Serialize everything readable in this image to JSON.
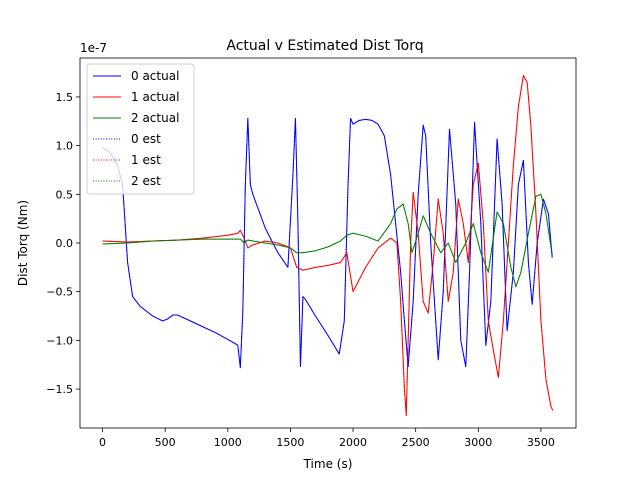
{
  "chart_data": {
    "type": "line",
    "title": "Actual v Estimated Dist Torq",
    "xlabel": "Time (s)",
    "ylabel": "Dist Torq (Nm)",
    "y_multiplier_label": "1e-7",
    "xlim": [
      -180,
      3780
    ],
    "ylim": [
      -1.9,
      1.9
    ],
    "x_ticks": [
      0,
      500,
      1000,
      1500,
      2000,
      2500,
      3000,
      3500
    ],
    "x_tick_labels": [
      "0",
      "500",
      "1000",
      "1500",
      "2000",
      "2500",
      "3000",
      "3500"
    ],
    "y_ticks": [
      -1.5,
      -1.0,
      -0.5,
      0.0,
      0.5,
      1.0,
      1.5
    ],
    "y_tick_labels": [
      "−1.5",
      "−1.0",
      "−0.5",
      "0.0",
      "0.5",
      "1.0",
      "1.5"
    ],
    "legend_position": "top-left",
    "series": [
      {
        "name": "0 actual",
        "color": "#0000ff",
        "style": "solid",
        "x": [
          0,
          60,
          120,
          160,
          200,
          240,
          300,
          400,
          480,
          520,
          560,
          600,
          700,
          800,
          900,
          1000,
          1080,
          1100,
          1120,
          1140,
          1160,
          1180,
          1200,
          1300,
          1400,
          1480,
          1520,
          1540,
          1560,
          1580,
          1600,
          1620,
          1700,
          1800,
          1890,
          1930,
          1960,
          1980,
          2000,
          2050,
          2100,
          2150,
          2200,
          2250,
          2300,
          2340,
          2380,
          2410,
          2440,
          2480,
          2520,
          2560,
          2580,
          2620,
          2680,
          2720,
          2770,
          2820,
          2860,
          2900,
          2930,
          2970,
          3020,
          3060,
          3100,
          3150,
          3190,
          3230,
          3280,
          3320,
          3360,
          3400,
          3430,
          3470,
          3520,
          3560,
          3590
        ],
        "y": [
          0.98,
          0.93,
          0.8,
          0.6,
          -0.2,
          -0.55,
          -0.65,
          -0.75,
          -0.8,
          -0.78,
          -0.74,
          -0.74,
          -0.8,
          -0.86,
          -0.92,
          -0.99,
          -1.05,
          -1.28,
          -0.7,
          0.6,
          1.28,
          0.6,
          0.5,
          0.15,
          -0.1,
          -0.25,
          0.7,
          1.28,
          0.2,
          -1.27,
          -0.55,
          -0.58,
          -0.75,
          -0.95,
          -1.14,
          -0.8,
          0.6,
          1.28,
          1.22,
          1.26,
          1.27,
          1.26,
          1.22,
          1.1,
          0.7,
          0.2,
          -0.3,
          -0.8,
          -1.27,
          -0.6,
          0.5,
          1.21,
          1.1,
          0.0,
          -1.2,
          -0.5,
          1.17,
          0.4,
          -1.0,
          -1.27,
          -0.3,
          1.24,
          0.2,
          -1.05,
          -0.6,
          1.07,
          0.4,
          -0.9,
          -0.3,
          0.6,
          0.85,
          -0.2,
          -0.63,
          0.0,
          0.45,
          0.3,
          -0.15
        ]
      },
      {
        "name": "1 actual",
        "color": "#ff0000",
        "style": "solid",
        "x": [
          0,
          200,
          400,
          600,
          800,
          1000,
          1080,
          1100,
          1130,
          1160,
          1200,
          1300,
          1400,
          1500,
          1550,
          1600,
          1700,
          1800,
          1900,
          1950,
          2000,
          2100,
          2200,
          2300,
          2350,
          2380,
          2410,
          2425,
          2440,
          2460,
          2480,
          2520,
          2560,
          2600,
          2640,
          2680,
          2720,
          2760,
          2800,
          2840,
          2880,
          2920,
          2960,
          3000,
          3040,
          3080,
          3120,
          3160,
          3200,
          3240,
          3280,
          3320,
          3360,
          3390,
          3420,
          3460,
          3500,
          3540,
          3580,
          3595
        ],
        "y": [
          0.02,
          0.01,
          0.02,
          0.03,
          0.05,
          0.08,
          0.1,
          0.13,
          0.05,
          -0.05,
          -0.02,
          0.02,
          0.0,
          -0.05,
          -0.25,
          -0.28,
          -0.25,
          -0.23,
          -0.2,
          -0.1,
          -0.5,
          -0.25,
          -0.05,
          0.05,
          0.0,
          -0.6,
          -1.5,
          -1.77,
          -1.0,
          0.0,
          0.52,
          0.1,
          -0.6,
          -0.72,
          -0.2,
          0.45,
          0.1,
          -0.6,
          -0.3,
          0.45,
          0.2,
          -0.2,
          0.6,
          0.82,
          0.2,
          -0.8,
          -1.1,
          -1.38,
          -0.8,
          0.0,
          0.8,
          1.4,
          1.72,
          1.65,
          1.2,
          0.3,
          -0.8,
          -1.4,
          -1.68,
          -1.72
        ]
      },
      {
        "name": "2 actual",
        "color": "#008000",
        "style": "solid",
        "x": [
          0,
          200,
          400,
          600,
          800,
          1000,
          1100,
          1130,
          1160,
          1200,
          1300,
          1400,
          1500,
          1550,
          1600,
          1700,
          1800,
          1900,
          1950,
          2000,
          2100,
          2200,
          2300,
          2350,
          2400,
          2440,
          2470,
          2520,
          2560,
          2620,
          2700,
          2760,
          2820,
          2900,
          2960,
          3020,
          3080,
          3150,
          3200,
          3260,
          3300,
          3340,
          3400,
          3460,
          3500,
          3540,
          3590
        ],
        "y": [
          -0.01,
          0.0,
          0.02,
          0.03,
          0.04,
          0.04,
          0.04,
          0.0,
          0.03,
          0.02,
          0.0,
          -0.02,
          -0.05,
          -0.1,
          -0.1,
          -0.08,
          -0.04,
          0.02,
          0.08,
          0.1,
          0.07,
          0.02,
          0.2,
          0.35,
          0.4,
          0.2,
          -0.1,
          0.1,
          0.28,
          0.1,
          -0.1,
          0.0,
          -0.2,
          0.0,
          0.2,
          -0.1,
          -0.3,
          0.32,
          0.2,
          -0.25,
          -0.45,
          -0.3,
          0.1,
          0.48,
          0.5,
          0.3,
          -0.12
        ]
      },
      {
        "name": "0 est",
        "color": "#0000ff",
        "style": "dotted",
        "x": [
          0,
          60,
          120,
          160,
          200,
          240,
          300,
          400,
          480,
          520,
          560,
          600,
          700,
          800,
          900,
          1000,
          1080,
          1100,
          1120,
          1140,
          1160,
          1180,
          1200,
          1300,
          1400,
          1480,
          1520,
          1540,
          1560,
          1580,
          1600,
          1620,
          1700,
          1800,
          1890,
          1930,
          1960,
          1980,
          2000,
          2050,
          2100,
          2150,
          2200,
          2250,
          2300,
          2340,
          2380,
          2410,
          2440,
          2480,
          2520,
          2560,
          2580,
          2620,
          2680,
          2720,
          2770,
          2820,
          2860,
          2900,
          2930,
          2970,
          3020,
          3060,
          3100,
          3150,
          3190,
          3230,
          3280,
          3320,
          3360,
          3400,
          3430,
          3470,
          3520,
          3560,
          3590
        ],
        "y": [
          0.98,
          0.93,
          0.8,
          0.6,
          -0.2,
          -0.55,
          -0.65,
          -0.75,
          -0.8,
          -0.78,
          -0.74,
          -0.74,
          -0.8,
          -0.86,
          -0.92,
          -0.99,
          -1.05,
          -1.28,
          -0.7,
          0.6,
          1.28,
          0.6,
          0.5,
          0.15,
          -0.1,
          -0.25,
          0.7,
          1.28,
          0.2,
          -1.27,
          -0.55,
          -0.58,
          -0.75,
          -0.95,
          -1.14,
          -0.8,
          0.6,
          1.28,
          1.22,
          1.26,
          1.27,
          1.26,
          1.22,
          1.1,
          0.7,
          0.2,
          -0.3,
          -0.8,
          -1.27,
          -0.6,
          0.5,
          1.21,
          1.1,
          0.0,
          -1.2,
          -0.5,
          1.17,
          0.4,
          -1.0,
          -1.27,
          -0.3,
          1.24,
          0.2,
          -1.05,
          -0.6,
          1.07,
          0.4,
          -0.9,
          -0.3,
          0.6,
          0.85,
          -0.2,
          -0.63,
          0.0,
          0.45,
          0.3,
          -0.15
        ]
      },
      {
        "name": "1 est",
        "color": "#ff0000",
        "style": "dotted",
        "x": [
          0,
          200,
          400,
          600,
          800,
          1000,
          1080,
          1100,
          1130,
          1160,
          1200,
          1300,
          1400,
          1500,
          1550,
          1600,
          1700,
          1800,
          1900,
          1950,
          2000,
          2100,
          2200,
          2300,
          2350,
          2380,
          2410,
          2425,
          2440,
          2460,
          2480,
          2520,
          2560,
          2600,
          2640,
          2680,
          2720,
          2760,
          2800,
          2840,
          2880,
          2920,
          2960,
          3000,
          3040,
          3080,
          3120,
          3160,
          3200,
          3240,
          3280,
          3320,
          3360,
          3390,
          3420,
          3460,
          3500,
          3540,
          3580,
          3595
        ],
        "y": [
          0.02,
          0.01,
          0.02,
          0.03,
          0.05,
          0.08,
          0.1,
          0.13,
          0.05,
          -0.05,
          -0.02,
          0.02,
          0.0,
          -0.05,
          -0.25,
          -0.28,
          -0.25,
          -0.23,
          -0.2,
          -0.1,
          -0.5,
          -0.25,
          -0.05,
          0.05,
          0.0,
          -0.6,
          -1.5,
          -1.77,
          -1.0,
          0.0,
          0.52,
          0.1,
          -0.6,
          -0.72,
          -0.2,
          0.45,
          0.1,
          -0.6,
          -0.3,
          0.45,
          0.2,
          -0.2,
          0.6,
          0.82,
          0.2,
          -0.8,
          -1.1,
          -1.38,
          -0.8,
          0.0,
          0.8,
          1.4,
          1.72,
          1.65,
          1.2,
          0.3,
          -0.8,
          -1.4,
          -1.68,
          -1.72
        ]
      },
      {
        "name": "2 est",
        "color": "#008000",
        "style": "dotted",
        "x": [
          0,
          200,
          400,
          600,
          800,
          1000,
          1100,
          1130,
          1160,
          1200,
          1300,
          1400,
          1500,
          1550,
          1600,
          1700,
          1800,
          1900,
          1950,
          2000,
          2100,
          2200,
          2300,
          2350,
          2400,
          2440,
          2470,
          2520,
          2560,
          2620,
          2700,
          2760,
          2820,
          2900,
          2960,
          3020,
          3080,
          3150,
          3200,
          3260,
          3300,
          3340,
          3400,
          3460,
          3500,
          3540,
          3590
        ],
        "y": [
          -0.01,
          0.0,
          0.02,
          0.03,
          0.04,
          0.04,
          0.04,
          0.0,
          0.03,
          0.02,
          0.0,
          -0.02,
          -0.05,
          -0.1,
          -0.1,
          -0.08,
          -0.04,
          0.02,
          0.08,
          0.1,
          0.07,
          0.02,
          0.2,
          0.35,
          0.4,
          0.2,
          -0.1,
          0.1,
          0.28,
          0.1,
          -0.1,
          0.0,
          -0.2,
          0.0,
          0.2,
          -0.1,
          -0.3,
          0.32,
          0.2,
          -0.25,
          -0.45,
          -0.3,
          0.1,
          0.48,
          0.5,
          0.3,
          -0.12
        ]
      }
    ]
  }
}
